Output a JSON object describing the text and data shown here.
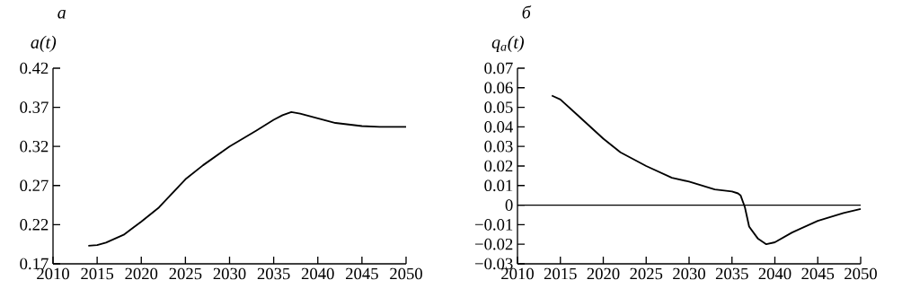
{
  "chart_data": [
    {
      "type": "line",
      "title": "а",
      "ylabel": "a(t)",
      "x": [
        2014,
        2015,
        2016,
        2018,
        2020,
        2022,
        2025,
        2027,
        2030,
        2033,
        2035,
        2036,
        2037,
        2038,
        2040,
        2042,
        2045,
        2047,
        2050
      ],
      "series": [
        {
          "color": "#000000",
          "values": [
            0.193,
            0.194,
            0.197,
            0.207,
            0.224,
            0.242,
            0.278,
            0.296,
            0.32,
            0.34,
            0.354,
            0.36,
            0.364,
            0.362,
            0.356,
            0.35,
            0.346,
            0.345,
            0.345
          ]
        }
      ],
      "xlim": [
        2010,
        2050
      ],
      "xticks": [
        2010,
        2015,
        2020,
        2025,
        2030,
        2035,
        2040,
        2045,
        2050
      ],
      "ylim": [
        0.17,
        0.42
      ],
      "yticks": [
        0.17,
        0.22,
        0.27,
        0.32,
        0.37,
        0.42
      ]
    },
    {
      "type": "line",
      "title": "б",
      "ylabel": "q$_{a}$(t)",
      "x": [
        2014,
        2015,
        2017,
        2020,
        2022,
        2025,
        2028,
        2030,
        2033,
        2035,
        2035.7,
        2036,
        2036.5,
        2037,
        2038,
        2039,
        2040,
        2042,
        2045,
        2048,
        2050
      ],
      "series": [
        {
          "color": "#000000",
          "values": [
            0.056,
            0.054,
            0.046,
            0.034,
            0.027,
            0.02,
            0.014,
            0.012,
            0.008,
            0.007,
            0.006,
            0.005,
            -0.001,
            -0.011,
            -0.017,
            -0.02,
            -0.019,
            -0.014,
            -0.008,
            -0.004,
            -0.002
          ]
        }
      ],
      "xlim": [
        2010,
        2050
      ],
      "xticks": [
        2010,
        2015,
        2020,
        2025,
        2030,
        2035,
        2040,
        2045,
        2050
      ],
      "ylim": [
        -0.03,
        0.07
      ],
      "yticks": [
        {
          "value": -0.03,
          "label": "−0.03"
        },
        {
          "value": -0.02,
          "label": "−0.02"
        },
        {
          "value": -0.01,
          "label": "−0.01"
        },
        0,
        0.01,
        0.02,
        0.03,
        0.04,
        0.05,
        0.06,
        0.07
      ],
      "ref_lines": [
        {
          "axis": "y",
          "value": 0
        }
      ]
    }
  ]
}
